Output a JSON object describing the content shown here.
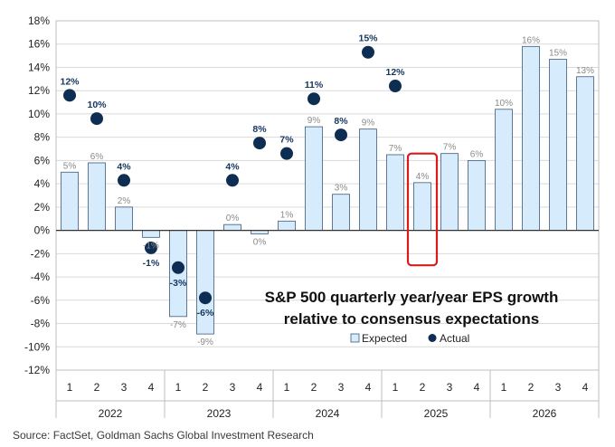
{
  "chart_data": {
    "type": "bar",
    "title": [
      "S&P 500 quarterly year/year EPS growth",
      "relative to consensus expectations"
    ],
    "xlabel": "",
    "ylabel": "",
    "ylim": [
      -12,
      18
    ],
    "ytick_step": 2,
    "ytick_format": "percent",
    "legend_position": "bottom-right",
    "categories": [
      "1",
      "2",
      "3",
      "4",
      "1",
      "2",
      "3",
      "4",
      "1",
      "2",
      "3",
      "4",
      "1",
      "2",
      "3",
      "4",
      "1",
      "2",
      "3",
      "4"
    ],
    "groups": [
      {
        "label": "2022",
        "count": 4
      },
      {
        "label": "2023",
        "count": 4
      },
      {
        "label": "2024",
        "count": 4
      },
      {
        "label": "2025",
        "count": 4
      },
      {
        "label": "2026",
        "count": 4
      }
    ],
    "series": [
      {
        "name": "Expected",
        "type": "bar",
        "color": "#d6ebfb",
        "stroke": "#3d5a7a",
        "values": [
          5,
          5.8,
          2,
          -0.6,
          -7.4,
          -8.9,
          0.5,
          -0.3,
          0.8,
          8.9,
          3.1,
          8.7,
          6.5,
          4.1,
          6.6,
          6,
          10.4,
          15.8,
          14.7,
          13.2
        ],
        "labels": [
          "5%",
          "6%",
          "2%",
          "-1%",
          "-7%",
          "-9%",
          "0%",
          "0%",
          "1%",
          "9%",
          "3%",
          "9%",
          "7%",
          "4%",
          "7%",
          "6%",
          "10%",
          "16%",
          "15%",
          "13%"
        ]
      },
      {
        "name": "Actual",
        "type": "scatter",
        "color": "#0e2d52",
        "values": [
          11.6,
          9.6,
          4.3,
          -1.5,
          -3.2,
          -5.8,
          4.3,
          7.5,
          6.6,
          11.3,
          8.2,
          15.3,
          12.4,
          null,
          null,
          null,
          null,
          null,
          null,
          null
        ],
        "labels": [
          "12%",
          "10%",
          "4%",
          "-1%",
          "-3%",
          "-6%",
          "4%",
          "8%",
          "7%",
          "11%",
          "8%",
          "15%",
          "12%",
          null,
          null,
          null,
          null,
          null,
          null,
          null
        ]
      }
    ],
    "highlight": {
      "category_index": 13,
      "color": "#d81b1b"
    }
  },
  "source": "Source: FactSet, Goldman Sachs Global Investment Research"
}
